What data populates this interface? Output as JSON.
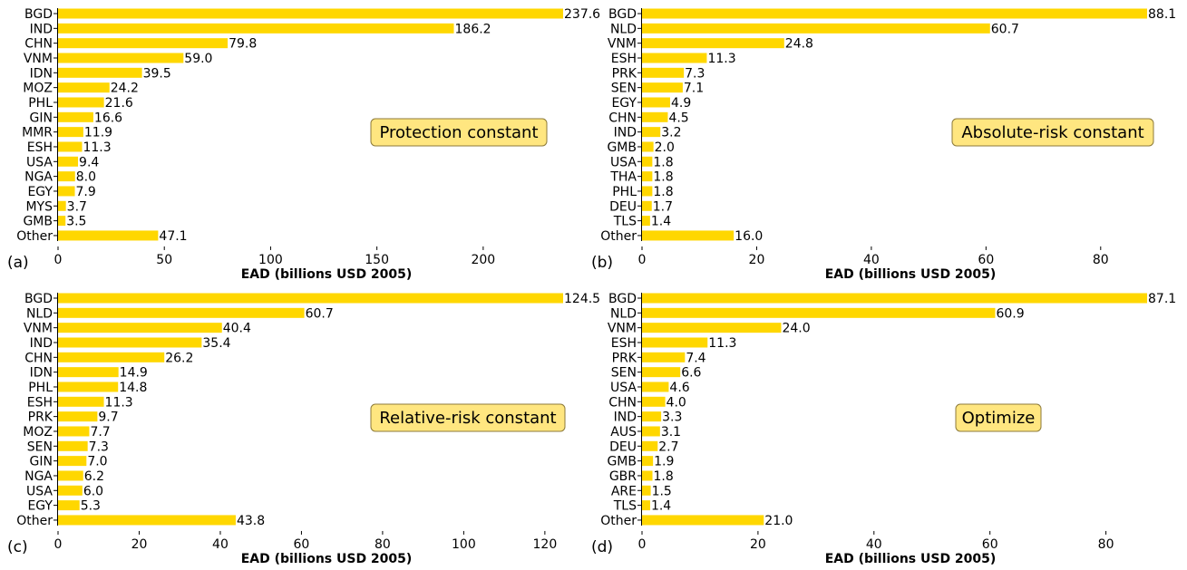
{
  "chart_data": [
    {
      "type": "bar",
      "orientation": "horizontal",
      "panel_label": "(a)",
      "annotation": "Protection constant",
      "xlabel": "EAD (billions USD 2005)",
      "xticks": [
        0,
        50,
        100,
        150,
        200
      ],
      "xlim": [
        0,
        237.6
      ],
      "bar_color": "#FFD700",
      "categories": [
        "BGD",
        "IND",
        "CHN",
        "VNM",
        "IDN",
        "MOZ",
        "PHL",
        "GIN",
        "MMR",
        "ESH",
        "USA",
        "NGA",
        "EGY",
        "MYS",
        "GMB",
        "Other"
      ],
      "values": [
        237.6,
        186.2,
        79.8,
        59.0,
        39.5,
        24.2,
        21.6,
        16.6,
        11.9,
        11.3,
        9.4,
        8.0,
        7.9,
        3.7,
        3.5,
        47.1
      ],
      "value_labels": [
        "237.6",
        "186.2",
        "79.8",
        "59.0",
        "39.5",
        "24.2",
        "21.6",
        "16.6",
        "11.9",
        "11.3",
        "9.4",
        "8.0",
        "7.9",
        "3.7",
        "3.5",
        "47.1"
      ]
    },
    {
      "type": "bar",
      "orientation": "horizontal",
      "panel_label": "(b)",
      "annotation": "Absolute-risk constant",
      "xlabel": "EAD (billions USD 2005)",
      "xticks": [
        0,
        20,
        40,
        60,
        80
      ],
      "xlim": [
        0,
        88.1
      ],
      "bar_color": "#FFD700",
      "categories": [
        "BGD",
        "NLD",
        "VNM",
        "ESH",
        "PRK",
        "SEN",
        "EGY",
        "CHN",
        "IND",
        "GMB",
        "USA",
        "THA",
        "PHL",
        "DEU",
        "TLS",
        "Other"
      ],
      "values": [
        88.1,
        60.7,
        24.8,
        11.3,
        7.3,
        7.1,
        4.9,
        4.5,
        3.2,
        2.0,
        1.8,
        1.8,
        1.8,
        1.7,
        1.4,
        16.0
      ],
      "value_labels": [
        "88.1",
        "60.7",
        "24.8",
        "11.3",
        "7.3",
        "7.1",
        "4.9",
        "4.5",
        "3.2",
        "2.0",
        "1.8",
        "1.8",
        "1.8",
        "1.7",
        "1.4",
        "16.0"
      ]
    },
    {
      "type": "bar",
      "orientation": "horizontal",
      "panel_label": "(c)",
      "annotation": "Relative-risk constant",
      "xlabel": "EAD (billions USD 2005)",
      "xticks": [
        0,
        20,
        40,
        60,
        80,
        100,
        120
      ],
      "xlim": [
        0,
        124.5
      ],
      "bar_color": "#FFD700",
      "categories": [
        "BGD",
        "NLD",
        "VNM",
        "IND",
        "CHN",
        "IDN",
        "PHL",
        "ESH",
        "PRK",
        "MOZ",
        "SEN",
        "GIN",
        "NGA",
        "USA",
        "EGY",
        "Other"
      ],
      "values": [
        124.5,
        60.7,
        40.4,
        35.4,
        26.2,
        14.9,
        14.8,
        11.3,
        9.7,
        7.7,
        7.3,
        7.0,
        6.2,
        6.0,
        5.3,
        43.8
      ],
      "value_labels": [
        "124.5",
        "60.7",
        "40.4",
        "35.4",
        "26.2",
        "14.9",
        "14.8",
        "11.3",
        "9.7",
        "7.7",
        "7.3",
        "7.0",
        "6.2",
        "6.0",
        "5.3",
        "43.8"
      ]
    },
    {
      "type": "bar",
      "orientation": "horizontal",
      "panel_label": "(d)",
      "annotation": "Optimize",
      "xlabel": "EAD (billions USD 2005)",
      "xticks": [
        0,
        20,
        40,
        60,
        80
      ],
      "xlim": [
        0,
        87.1
      ],
      "bar_color": "#FFD700",
      "categories": [
        "BGD",
        "NLD",
        "VNM",
        "ESH",
        "PRK",
        "SEN",
        "USA",
        "CHN",
        "IND",
        "AUS",
        "DEU",
        "GMB",
        "GBR",
        "ARE",
        "TLS",
        "Other"
      ],
      "values": [
        87.1,
        60.9,
        24.0,
        11.3,
        7.4,
        6.6,
        4.6,
        4.0,
        3.3,
        3.1,
        2.7,
        1.9,
        1.8,
        1.5,
        1.4,
        21.0
      ],
      "value_labels": [
        "87.1",
        "60.9",
        "24.0",
        "11.3",
        "7.4",
        "6.6",
        "4.6",
        "4.0",
        "3.3",
        "3.1",
        "2.7",
        "1.9",
        "1.8",
        "1.5",
        "1.4",
        "21.0"
      ]
    }
  ],
  "colors": {
    "bar": "#FFD700",
    "annotation_fill": "#FFE680",
    "annotation_border": "#8C7A3A"
  }
}
